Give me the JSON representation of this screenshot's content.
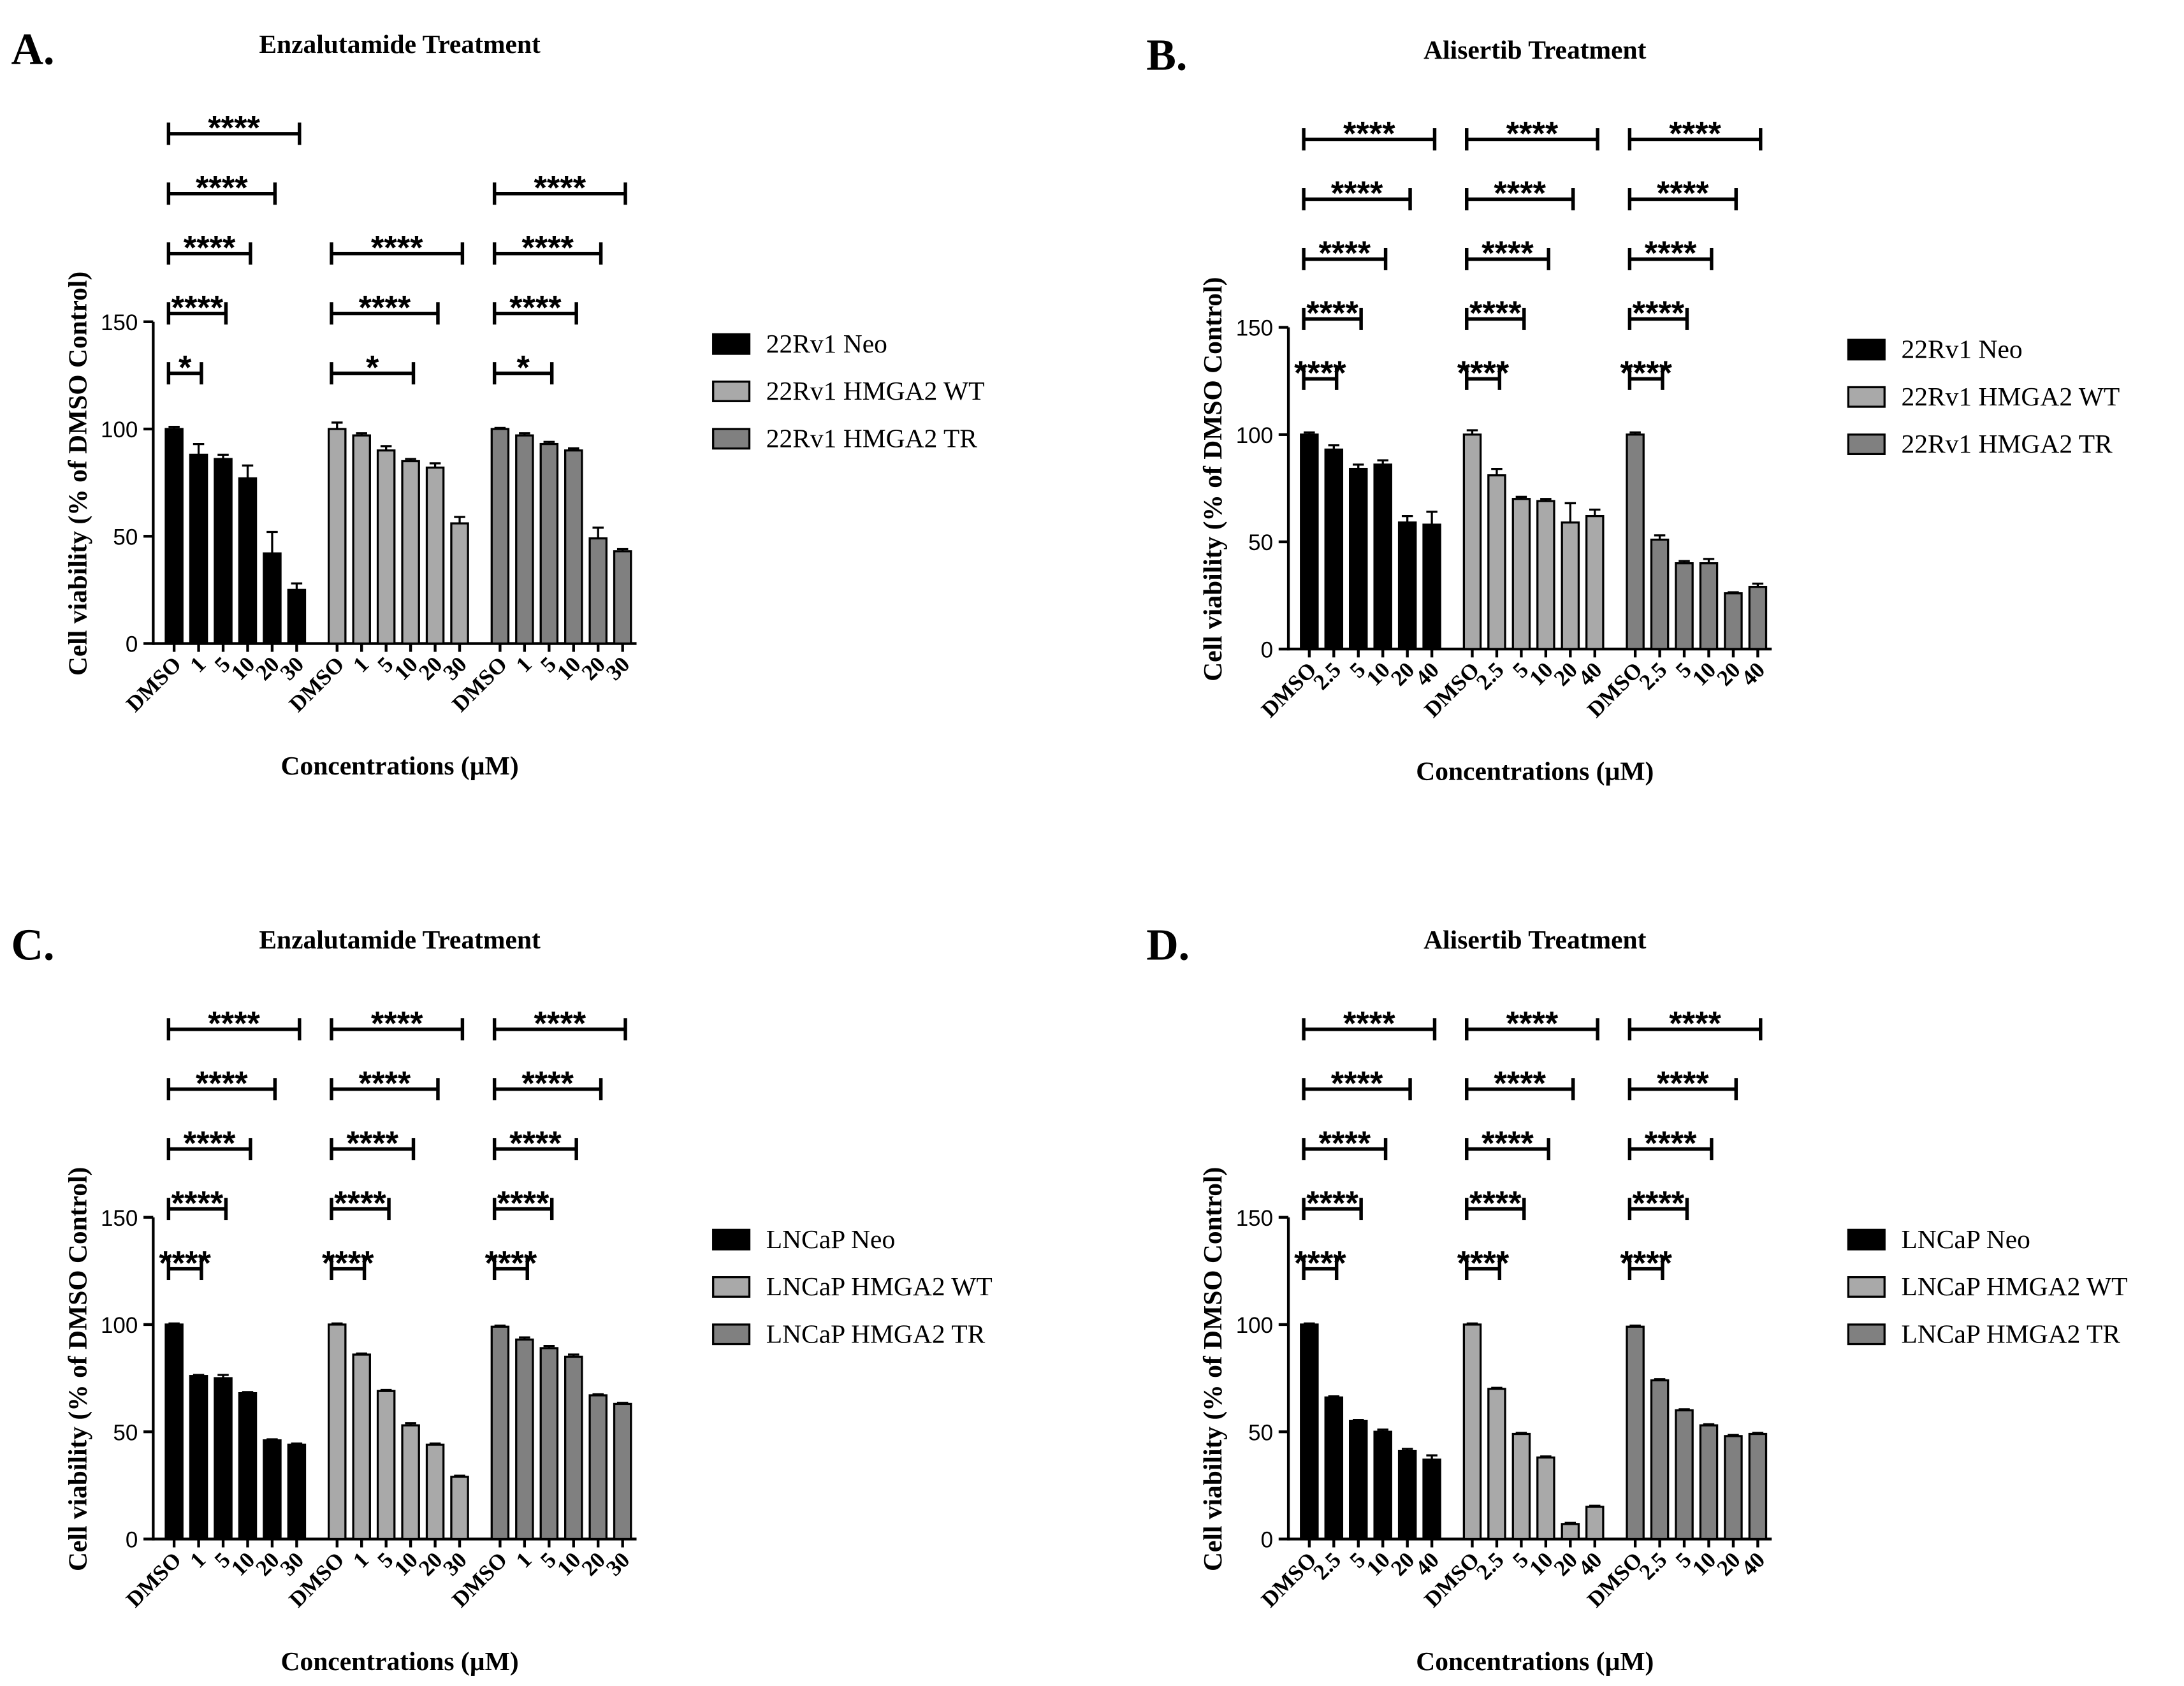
{
  "chart_data": [
    {
      "type": "bar",
      "panel_label": "A.",
      "title": "Enzalutamide Treatment",
      "xlabel": "Concentrations (µM)",
      "ylabel": "Cell viability (% of DMSO Control)",
      "categories": [
        "DMSO",
        "1",
        "5",
        "10",
        "20",
        "30"
      ],
      "ylim": [
        0,
        150
      ],
      "yticks": [
        0,
        50,
        100,
        150
      ],
      "series": [
        {
          "name": "22Rv1 Neo",
          "color": "#000000",
          "values": [
            100,
            88,
            86,
            77,
            42,
            25
          ],
          "errors": [
            1,
            5,
            2,
            6,
            10,
            3
          ],
          "significance": [
            "*",
            "****",
            "****",
            "****",
            "****"
          ]
        },
        {
          "name": "22Rv1 HMGA2 WT",
          "color": "#a9a9a9",
          "values": [
            100,
            97,
            90,
            85,
            82,
            56
          ],
          "errors": [
            3,
            1,
            2,
            1,
            2,
            3
          ],
          "significance": [
            null,
            null,
            "*",
            "****",
            "****"
          ]
        },
        {
          "name": "22Rv1 HMGA2 TR",
          "color": "#808080",
          "values": [
            100,
            97,
            93,
            90,
            49,
            43
          ],
          "errors": [
            0.5,
            1,
            1,
            1,
            5,
            1
          ],
          "significance": [
            null,
            "*",
            "****",
            "****",
            "****"
          ]
        }
      ]
    },
    {
      "type": "bar",
      "panel_label": "B.",
      "title": "Alisertib Treatment",
      "xlabel": "Concentrations (µM)",
      "ylabel": "Cell viability (% of DMSO Control)",
      "categories": [
        "DMSO",
        "2.5",
        "5",
        "10",
        "20",
        "40"
      ],
      "ylim": [
        0,
        150
      ],
      "yticks": [
        0,
        50,
        100,
        150
      ],
      "series": [
        {
          "name": "22Rv1 Neo",
          "color": "#000000",
          "values": [
            100,
            93,
            84,
            86,
            59,
            58
          ],
          "errors": [
            1,
            2,
            2,
            2,
            3,
            6
          ],
          "significance": [
            "****",
            "****",
            "****",
            "****",
            "****"
          ]
        },
        {
          "name": "22Rv1 HMGA2 WT",
          "color": "#a9a9a9",
          "values": [
            100,
            81,
            70,
            69,
            59,
            62
          ],
          "errors": [
            2,
            3,
            1,
            1,
            9,
            3
          ],
          "significance": [
            "****",
            "****",
            "****",
            "****",
            "****"
          ]
        },
        {
          "name": "22Rv1 HMGA2 TR",
          "color": "#808080",
          "values": [
            100,
            51,
            40,
            40,
            26,
            29
          ],
          "errors": [
            1,
            2,
            1,
            2,
            0.5,
            1.5
          ],
          "significance": [
            "****",
            "****",
            "****",
            "****",
            "****"
          ]
        }
      ]
    },
    {
      "type": "bar",
      "panel_label": "C.",
      "title": "Enzalutamide Treatment",
      "xlabel": "Concentrations (µM)",
      "ylabel": "Cell viability (% of DMSO Control)",
      "categories": [
        "DMSO",
        "1",
        "5",
        "10",
        "20",
        "30"
      ],
      "ylim": [
        0,
        150
      ],
      "yticks": [
        0,
        50,
        100,
        150
      ],
      "series": [
        {
          "name": "LNCaP Neo",
          "color": "#000000",
          "values": [
            100,
            76,
            75,
            68,
            46,
            44
          ],
          "errors": [
            0.5,
            0.5,
            1.5,
            0.5,
            0.5,
            0.5
          ],
          "significance": [
            "****",
            "****",
            "****",
            "****",
            "****"
          ]
        },
        {
          "name": "LNCaP HMGA2 WT",
          "color": "#a9a9a9",
          "values": [
            100,
            86,
            69,
            53,
            44,
            29
          ],
          "errors": [
            0.5,
            0.5,
            0.5,
            1,
            0.5,
            0.5
          ],
          "significance": [
            "****",
            "****",
            "****",
            "****",
            "****"
          ]
        },
        {
          "name": "LNCaP HMGA2 TR",
          "color": "#808080",
          "values": [
            99,
            93,
            89,
            85,
            67,
            63
          ],
          "errors": [
            0.5,
            1,
            1,
            1,
            0.5,
            0.5
          ],
          "significance": [
            "****",
            "****",
            "****",
            "****",
            "****"
          ]
        }
      ]
    },
    {
      "type": "bar",
      "panel_label": "D.",
      "title": "Alisertib Treatment",
      "xlabel": "Concentrations (µM)",
      "ylabel": "Cell viability (% of DMSO Control)",
      "categories": [
        "DMSO",
        "2.5",
        "5",
        "10",
        "20",
        "40"
      ],
      "ylim": [
        0,
        150
      ],
      "yticks": [
        0,
        50,
        100,
        150
      ],
      "series": [
        {
          "name": "LNCaP Neo",
          "color": "#000000",
          "values": [
            100,
            66,
            55,
            50,
            41,
            37
          ],
          "errors": [
            0.5,
            0.5,
            0.5,
            1,
            1,
            2
          ],
          "significance": [
            "****",
            "****",
            "****",
            "****",
            "****"
          ]
        },
        {
          "name": "LNCaP HMGA2 WT",
          "color": "#a9a9a9",
          "values": [
            100,
            70,
            49,
            38,
            7,
            15
          ],
          "errors": [
            0.5,
            0.5,
            0.5,
            0.5,
            0.5,
            0.5
          ],
          "significance": [
            "****",
            "****",
            "****",
            "****",
            "****"
          ]
        },
        {
          "name": "LNCaP HMGA2 TR",
          "color": "#808080",
          "values": [
            99,
            74,
            60,
            53,
            48,
            49
          ],
          "errors": [
            0.5,
            0.5,
            0.5,
            0.5,
            0.5,
            0.5
          ],
          "significance": [
            "****",
            "****",
            "****",
            "****",
            "****"
          ]
        }
      ]
    }
  ]
}
